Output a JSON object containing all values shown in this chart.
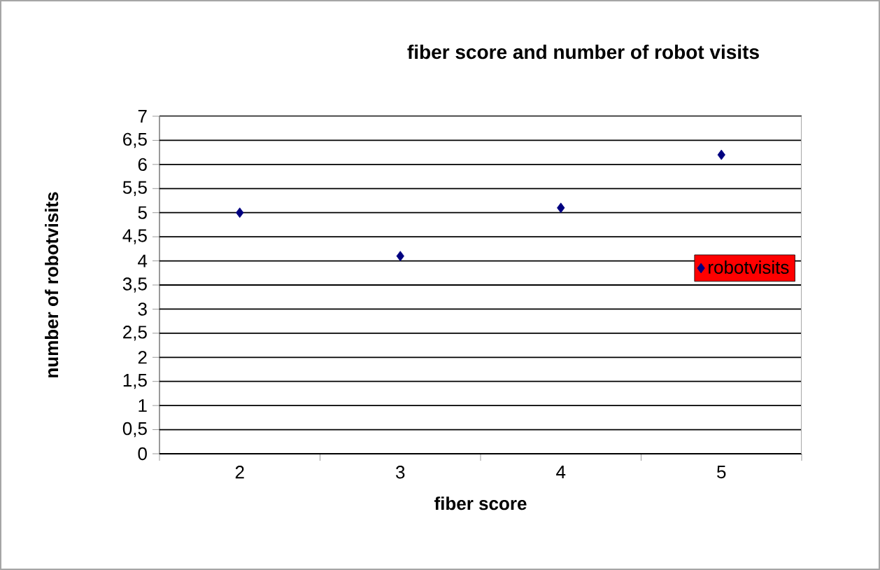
{
  "chart_data": {
    "type": "scatter",
    "title": "fiber score and number of robot visits",
    "xlabel": "fiber score",
    "ylabel": "number of robotvisits",
    "categories": [
      "2",
      "3",
      "4",
      "5"
    ],
    "series": [
      {
        "name": "robotvisits",
        "color": "#000080",
        "values": [
          5,
          4.1,
          5.1,
          6.2
        ]
      }
    ],
    "ylim": [
      0,
      7
    ],
    "yticks": [
      0,
      {
        "value": 0.5,
        "label": "0,5"
      },
      1,
      {
        "value": 1.5,
        "label": "1,5"
      },
      2,
      {
        "value": 2.5,
        "label": "2,5"
      },
      3,
      {
        "value": 3.5,
        "label": "3,5"
      },
      4,
      {
        "value": 4.5,
        "label": "4,5"
      },
      5,
      {
        "value": 5.5,
        "label": "5,5"
      },
      6,
      {
        "value": 6.5,
        "label": "6,5"
      },
      7
    ],
    "grid": "y",
    "legend": "right",
    "marker": "diamond"
  }
}
